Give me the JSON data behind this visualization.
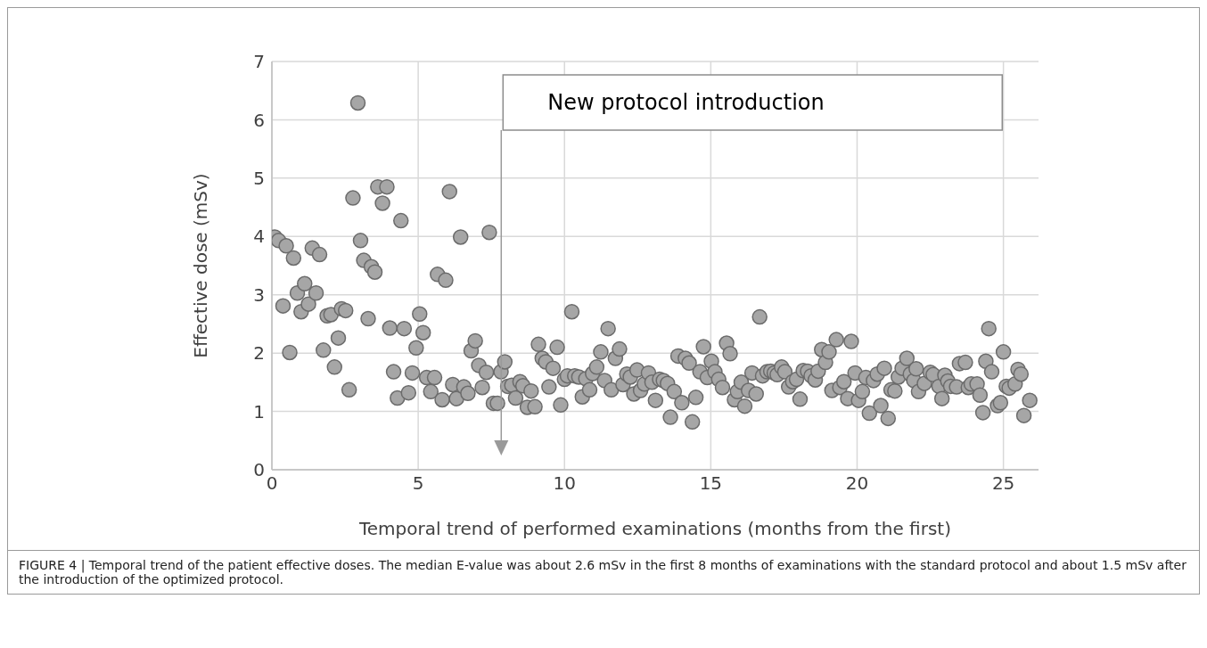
{
  "chart_data": {
    "type": "scatter",
    "xlabel": "Temporal trend of performed examinations (months from the first)",
    "ylabel": "Effective dose (mSv)",
    "xlim": [
      0,
      26.2
    ],
    "xticks": [
      0,
      5,
      10,
      15,
      20,
      25
    ],
    "ylim": [
      0,
      7
    ],
    "yticks": [
      0,
      1,
      2,
      3,
      4,
      5,
      6,
      7
    ],
    "grid": true,
    "marker": "circle",
    "annotations": [
      "New protocol introduction",
      "FIGURE 4 | Temporal trend of the patient effective doses. The median E-value was about 2.6 mSv in the first 8 months of examinations with the standard protocol and about 1.5 mSv after the introduction of the optimized protocol."
    ],
    "series": [
      {
        "color": "#a6a6a6",
        "x": [
          0.1,
          0.23,
          0.38,
          0.49,
          0.61,
          0.74,
          0.87,
          1.0,
          1.12,
          1.25,
          1.38,
          1.51,
          1.63,
          1.76,
          1.89,
          2.02,
          2.14,
          2.27,
          2.38,
          2.52,
          2.64,
          2.77,
          2.94,
          3.03,
          3.14,
          3.29,
          3.4,
          3.52,
          3.62,
          3.78,
          3.93,
          4.03,
          4.16,
          4.29,
          4.41,
          4.52,
          4.67,
          4.8,
          4.93,
          5.05,
          5.17,
          5.29,
          5.43,
          5.56,
          5.66,
          5.82,
          5.94,
          6.07,
          6.18,
          6.31,
          6.45,
          6.56,
          6.7,
          6.81,
          6.95,
          7.07,
          7.19,
          7.33,
          7.43,
          7.57,
          7.71,
          7.83,
          7.96,
          8.06,
          8.2,
          8.33,
          8.48,
          8.58,
          8.73,
          8.86,
          8.99,
          9.11,
          9.24,
          9.36,
          9.47,
          9.61,
          9.75,
          9.87,
          10.0,
          10.1,
          10.25,
          10.35,
          10.49,
          10.61,
          10.73,
          10.86,
          10.96,
          11.1,
          11.24,
          11.37,
          11.49,
          11.6,
          11.74,
          11.88,
          12.0,
          12.13,
          12.25,
          12.37,
          12.48,
          12.6,
          12.73,
          12.87,
          12.99,
          13.11,
          13.25,
          13.38,
          13.52,
          13.62,
          13.75,
          13.88,
          14.01,
          14.13,
          14.26,
          14.37,
          14.49,
          14.63,
          14.75,
          14.88,
          15.02,
          15.14,
          15.27,
          15.4,
          15.54,
          15.66,
          15.81,
          15.91,
          16.04,
          16.16,
          16.29,
          16.41,
          16.55,
          16.67,
          16.77,
          16.92,
          17.05,
          17.17,
          17.27,
          17.42,
          17.53,
          17.66,
          17.8,
          17.93,
          18.05,
          18.16,
          18.31,
          18.43,
          18.57,
          18.67,
          18.79,
          18.92,
          19.04,
          19.14,
          19.29,
          19.41,
          19.55,
          19.68,
          19.8,
          19.93,
          20.05,
          20.18,
          20.3,
          20.42,
          20.56,
          20.69,
          20.81,
          20.93,
          21.06,
          21.16,
          21.29,
          21.41,
          21.54,
          21.7,
          21.82,
          21.94,
          22.02,
          22.1,
          22.3,
          22.5,
          22.6,
          22.8,
          22.9,
          23.0,
          23.1,
          23.2,
          23.4,
          23.5,
          23.7,
          23.8,
          23.9,
          24.1,
          24.2,
          24.3,
          24.4,
          24.5,
          24.6,
          24.8,
          24.9,
          25.0,
          25.1,
          25.2,
          25.4,
          25.5,
          25.6,
          25.7,
          25.9
        ],
        "values": [
          3.99,
          3.93,
          2.81,
          3.84,
          2.01,
          3.63,
          3.03,
          2.71,
          3.19,
          2.84,
          3.8,
          3.03,
          3.69,
          2.05,
          2.64,
          2.66,
          1.76,
          2.26,
          2.76,
          2.73,
          1.37,
          4.66,
          6.29,
          3.93,
          3.59,
          2.59,
          3.48,
          3.39,
          4.85,
          4.57,
          4.85,
          2.43,
          1.68,
          1.23,
          4.27,
          2.42,
          1.32,
          1.66,
          2.09,
          2.67,
          2.35,
          1.58,
          1.34,
          1.58,
          3.35,
          1.2,
          3.25,
          4.77,
          1.46,
          1.22,
          3.99,
          1.42,
          1.31,
          2.04,
          2.21,
          1.79,
          1.41,
          1.67,
          4.07,
          1.14,
          1.14,
          1.68,
          1.85,
          1.43,
          1.45,
          1.23,
          1.51,
          1.44,
          1.07,
          1.35,
          1.08,
          2.15,
          1.91,
          1.85,
          1.42,
          1.74,
          2.1,
          1.11,
          1.55,
          1.61,
          2.71,
          1.61,
          1.59,
          1.25,
          1.56,
          1.37,
          1.65,
          1.76,
          2.02,
          1.53,
          2.42,
          1.37,
          1.91,
          2.07,
          1.46,
          1.64,
          1.59,
          1.3,
          1.71,
          1.36,
          1.47,
          1.66,
          1.5,
          1.19,
          1.55,
          1.53,
          1.48,
          0.9,
          1.34,
          1.95,
          1.15,
          1.91,
          1.83,
          0.82,
          1.24,
          1.68,
          2.11,
          1.58,
          1.86,
          1.68,
          1.55,
          1.41,
          2.17,
          1.99,
          1.2,
          1.34,
          1.5,
          1.09,
          1.36,
          1.66,
          1.3,
          2.62,
          1.61,
          1.68,
          1.69,
          1.66,
          1.63,
          1.76,
          1.68,
          1.42,
          1.51,
          1.55,
          1.21,
          1.7,
          1.69,
          1.61,
          1.54,
          1.69,
          2.06,
          1.84,
          2.02,
          1.36,
          2.23,
          1.41,
          1.51,
          1.22,
          2.2,
          1.66,
          1.19,
          1.34,
          1.58,
          0.97,
          1.53,
          1.64,
          1.1,
          1.74,
          0.88,
          1.37,
          1.35,
          1.59,
          1.74,
          1.91,
          1.64,
          1.53,
          1.73,
          1.34,
          1.48,
          1.67,
          1.63,
          1.43,
          1.22,
          1.62,
          1.52,
          1.43,
          1.42,
          1.82,
          1.84,
          1.41,
          1.47,
          1.47,
          1.28,
          0.98,
          1.86,
          2.42,
          1.68,
          1.1,
          1.15,
          2.02,
          1.43,
          1.4,
          1.47,
          1.72,
          1.64,
          0.93,
          1.19
        ]
      }
    ]
  }
}
